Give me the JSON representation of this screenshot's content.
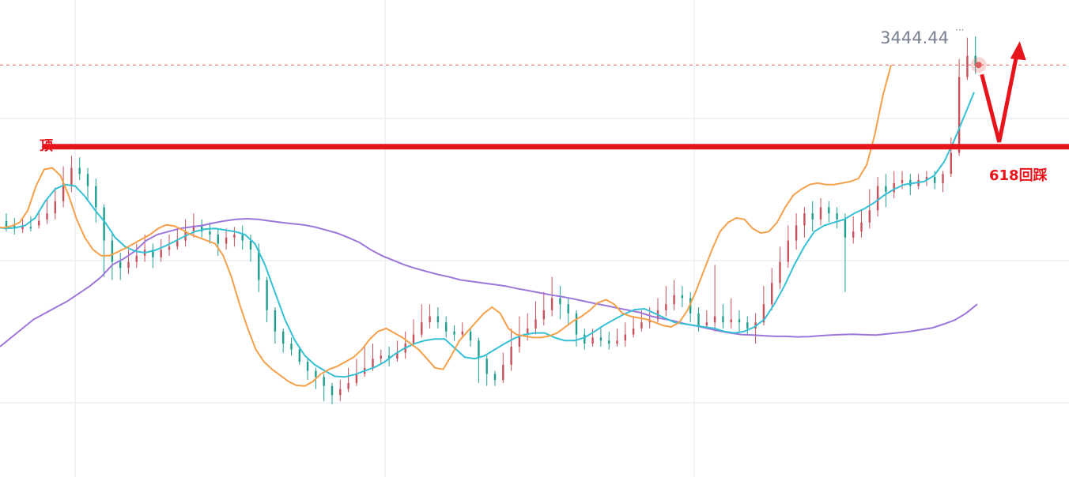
{
  "chart_data": {
    "type": "candlestick",
    "price_label": "3444.44",
    "y_range": [
      2000,
      3460
    ],
    "grid": true,
    "colors": {
      "up": "#c7505a",
      "down": "#1f9e8f",
      "ma_fast": "#f5a04a",
      "ma_mid": "#35c0d4",
      "ma_slow": "#9d76d9",
      "annotation": "#e8141b",
      "price_line": "#e25d5d",
      "grid": "#eceef2"
    },
    "candles": [
      [
        2835,
        2815,
        2860,
        2800
      ],
      [
        2820,
        2810,
        2845,
        2790
      ],
      [
        2808,
        2818,
        2840,
        2795
      ],
      [
        2815,
        2810,
        2850,
        2800
      ],
      [
        2820,
        2835,
        2870,
        2810
      ],
      [
        2840,
        2860,
        2905,
        2825
      ],
      [
        2860,
        2900,
        2945,
        2840
      ],
      [
        2900,
        2960,
        3015,
        2880
      ],
      [
        2950,
        3010,
        3050,
        2930
      ],
      [
        3010,
        2990,
        3045,
        2970
      ],
      [
        2990,
        2950,
        3010,
        2900
      ],
      [
        2950,
        2880,
        2975,
        2830
      ],
      [
        2880,
        2770,
        2890,
        2650
      ],
      [
        2770,
        2700,
        2800,
        2640
      ],
      [
        2700,
        2680,
        2730,
        2640
      ],
      [
        2680,
        2700,
        2740,
        2660
      ],
      [
        2700,
        2720,
        2760,
        2680
      ],
      [
        2720,
        2740,
        2790,
        2700
      ],
      [
        2740,
        2715,
        2760,
        2680
      ],
      [
        2715,
        2740,
        2775,
        2700
      ],
      [
        2740,
        2750,
        2790,
        2720
      ],
      [
        2750,
        2770,
        2810,
        2740
      ],
      [
        2770,
        2800,
        2840,
        2750
      ],
      [
        2800,
        2820,
        2860,
        2780
      ],
      [
        2820,
        2800,
        2840,
        2780
      ],
      [
        2800,
        2790,
        2830,
        2760
      ],
      [
        2790,
        2760,
        2810,
        2720
      ],
      [
        2760,
        2780,
        2810,
        2740
      ],
      [
        2780,
        2790,
        2815,
        2750
      ],
      [
        2790,
        2770,
        2820,
        2740
      ],
      [
        2770,
        2740,
        2790,
        2700
      ],
      [
        2740,
        2640,
        2760,
        2600
      ],
      [
        2640,
        2540,
        2650,
        2500
      ],
      [
        2540,
        2470,
        2550,
        2430
      ],
      [
        2470,
        2430,
        2480,
        2400
      ],
      [
        2430,
        2410,
        2450,
        2390
      ],
      [
        2410,
        2370,
        2420,
        2360
      ],
      [
        2370,
        2340,
        2380,
        2310
      ],
      [
        2340,
        2320,
        2350,
        2280
      ],
      [
        2320,
        2290,
        2330,
        2240
      ],
      [
        2290,
        2260,
        2300,
        2230
      ],
      [
        2260,
        2280,
        2310,
        2240
      ],
      [
        2280,
        2300,
        2350,
        2270
      ],
      [
        2300,
        2330,
        2380,
        2290
      ],
      [
        2330,
        2350,
        2420,
        2320
      ],
      [
        2350,
        2380,
        2430,
        2340
      ],
      [
        2380,
        2390,
        2410,
        2360
      ],
      [
        2390,
        2380,
        2420,
        2355
      ],
      [
        2380,
        2400,
        2440,
        2370
      ],
      [
        2400,
        2430,
        2470,
        2380
      ],
      [
        2430,
        2460,
        2510,
        2420
      ],
      [
        2460,
        2500,
        2560,
        2450
      ],
      [
        2500,
        2520,
        2560,
        2480
      ],
      [
        2520,
        2500,
        2550,
        2480
      ],
      [
        2500,
        2470,
        2520,
        2450
      ],
      [
        2470,
        2460,
        2490,
        2440
      ],
      [
        2460,
        2470,
        2500,
        2450
      ],
      [
        2470,
        2440,
        2480,
        2420
      ],
      [
        2440,
        2380,
        2450,
        2300
      ],
      [
        2380,
        2330,
        2390,
        2290
      ],
      [
        2330,
        2310,
        2340,
        2290
      ],
      [
        2310,
        2360,
        2400,
        2300
      ],
      [
        2360,
        2420,
        2480,
        2340
      ],
      [
        2420,
        2460,
        2520,
        2400
      ],
      [
        2460,
        2480,
        2530,
        2440
      ],
      [
        2480,
        2510,
        2570,
        2460
      ],
      [
        2510,
        2540,
        2600,
        2490
      ],
      [
        2540,
        2580,
        2650,
        2520
      ],
      [
        2580,
        2560,
        2620,
        2510
      ],
      [
        2560,
        2530,
        2580,
        2490
      ],
      [
        2530,
        2460,
        2540,
        2420
      ],
      [
        2460,
        2430,
        2480,
        2410
      ],
      [
        2430,
        2450,
        2480,
        2420
      ],
      [
        2450,
        2440,
        2480,
        2420
      ],
      [
        2440,
        2430,
        2470,
        2410
      ],
      [
        2430,
        2440,
        2480,
        2420
      ],
      [
        2440,
        2460,
        2500,
        2420
      ],
      [
        2460,
        2480,
        2520,
        2450
      ],
      [
        2480,
        2500,
        2540,
        2470
      ],
      [
        2500,
        2510,
        2550,
        2480
      ],
      [
        2510,
        2540,
        2580,
        2500
      ],
      [
        2540,
        2560,
        2620,
        2520
      ],
      [
        2560,
        2590,
        2640,
        2540
      ],
      [
        2590,
        2580,
        2620,
        2550
      ],
      [
        2580,
        2530,
        2600,
        2500
      ],
      [
        2530,
        2490,
        2550,
        2470
      ],
      [
        2490,
        2500,
        2540,
        2480
      ],
      [
        2500,
        2520,
        2690,
        2470
      ],
      [
        2520,
        2500,
        2560,
        2480
      ],
      [
        2500,
        2510,
        2580,
        2480
      ],
      [
        2510,
        2500,
        2540,
        2470
      ],
      [
        2500,
        2480,
        2520,
        2460
      ],
      [
        2480,
        2500,
        2530,
        2430
      ],
      [
        2500,
        2560,
        2620,
        2490
      ],
      [
        2560,
        2630,
        2680,
        2540
      ],
      [
        2630,
        2700,
        2750,
        2610
      ],
      [
        2700,
        2770,
        2820,
        2680
      ],
      [
        2770,
        2820,
        2860,
        2740
      ],
      [
        2820,
        2860,
        2880,
        2780
      ],
      [
        2860,
        2840,
        2900,
        2800
      ],
      [
        2840,
        2880,
        2910,
        2820
      ],
      [
        2880,
        2860,
        2900,
        2830
      ],
      [
        2860,
        2840,
        2880,
        2810
      ],
      [
        2840,
        2780,
        2860,
        2600
      ],
      [
        2780,
        2800,
        2850,
        2760
      ],
      [
        2800,
        2830,
        2870,
        2780
      ],
      [
        2830,
        2870,
        2940,
        2810
      ],
      [
        2870,
        2950,
        2980,
        2850
      ],
      [
        2950,
        2930,
        2990,
        2880
      ],
      [
        2930,
        2960,
        3000,
        2910
      ],
      [
        2960,
        2970,
        3000,
        2940
      ],
      [
        2970,
        2950,
        2990,
        2920
      ],
      [
        2950,
        2970,
        2990,
        2940
      ],
      [
        2970,
        2980,
        3000,
        2950
      ],
      [
        2980,
        2960,
        3000,
        2940
      ],
      [
        2960,
        2990,
        3000,
        2930
      ],
      [
        2990,
        3060,
        3110,
        2980
      ],
      [
        3060,
        3310,
        3370,
        3050
      ],
      [
        3310,
        3380,
        3440,
        3300
      ],
      [
        3380,
        3350,
        3444,
        3320
      ]
    ],
    "ma_fast": [
      2815,
      2812,
      2818,
      2830,
      2870,
      2950,
      3005,
      3010,
      2985,
      2920,
      2840,
      2780,
      2740,
      2720,
      2720,
      2732,
      2745,
      2760,
      2775,
      2790,
      2810,
      2822,
      2818,
      2805,
      2790,
      2780,
      2770,
      2760,
      2720,
      2650,
      2560,
      2480,
      2410,
      2370,
      2345,
      2325,
      2305,
      2292,
      2290,
      2305,
      2330,
      2345,
      2355,
      2370,
      2385,
      2410,
      2445,
      2470,
      2480,
      2465,
      2450,
      2430,
      2410,
      2380,
      2350,
      2345,
      2390,
      2440,
      2470,
      2500,
      2530,
      2550,
      2530,
      2480,
      2460,
      2455,
      2450,
      2450,
      2455,
      2465,
      2485,
      2505,
      2520,
      2540,
      2565,
      2575,
      2560,
      2530,
      2520,
      2515,
      2510,
      2500,
      2490,
      2485,
      2500,
      2540,
      2600,
      2670,
      2740,
      2800,
      2830,
      2845,
      2840,
      2810,
      2795,
      2800,
      2830,
      2880,
      2920,
      2940,
      2955,
      2960,
      2955,
      2955,
      2960,
      2965,
      2975,
      3020,
      3120,
      3250,
      3350
    ],
    "ma_mid": [
      2815,
      2810,
      2812,
      2820,
      2845,
      2900,
      2940,
      2955,
      2950,
      2915,
      2870,
      2830,
      2780,
      2750,
      2735,
      2730,
      2738,
      2752,
      2768,
      2785,
      2800,
      2808,
      2810,
      2805,
      2800,
      2790,
      2760,
      2690,
      2600,
      2510,
      2440,
      2390,
      2360,
      2340,
      2322,
      2320,
      2328,
      2340,
      2352,
      2370,
      2395,
      2415,
      2430,
      2440,
      2445,
      2445,
      2415,
      2385,
      2380,
      2390,
      2410,
      2430,
      2448,
      2460,
      2465,
      2465,
      2450,
      2440,
      2440,
      2450,
      2470,
      2492,
      2510,
      2528,
      2542,
      2545,
      2530,
      2515,
      2500,
      2495,
      2490,
      2485,
      2480,
      2470,
      2465,
      2470,
      2485,
      2510,
      2560,
      2620,
      2690,
      2750,
      2800,
      2820,
      2830,
      2840,
      2860,
      2875,
      2895,
      2920,
      2940,
      2955,
      2960,
      2965,
      2985,
      3030,
      3100,
      3180,
      3260
    ],
    "ma_slow": [
      2420,
      2450,
      2480,
      2510,
      2530,
      2550,
      2570,
      2595,
      2620,
      2650,
      2690,
      2710,
      2735,
      2770,
      2790,
      2800,
      2810,
      2815,
      2820,
      2828,
      2835,
      2840,
      2842,
      2840,
      2835,
      2830,
      2826,
      2822,
      2815,
      2805,
      2795,
      2780,
      2764,
      2740,
      2720,
      2705,
      2690,
      2678,
      2668,
      2658,
      2650,
      2640,
      2635,
      2630,
      2625,
      2620,
      2612,
      2605,
      2598,
      2591,
      2585,
      2578,
      2570,
      2562,
      2555,
      2547,
      2540,
      2532,
      2520,
      2512,
      2505,
      2495,
      2488,
      2480,
      2472,
      2465,
      2460,
      2458,
      2456,
      2454,
      2454,
      2452,
      2453,
      2456,
      2458,
      2460,
      2461,
      2459,
      2458,
      2462,
      2466,
      2470,
      2476,
      2482,
      2494,
      2508,
      2530,
      2560
    ]
  },
  "annotations": {
    "top_label": "顶",
    "retrace_label": "618回踩",
    "resistance_price": 3080
  }
}
